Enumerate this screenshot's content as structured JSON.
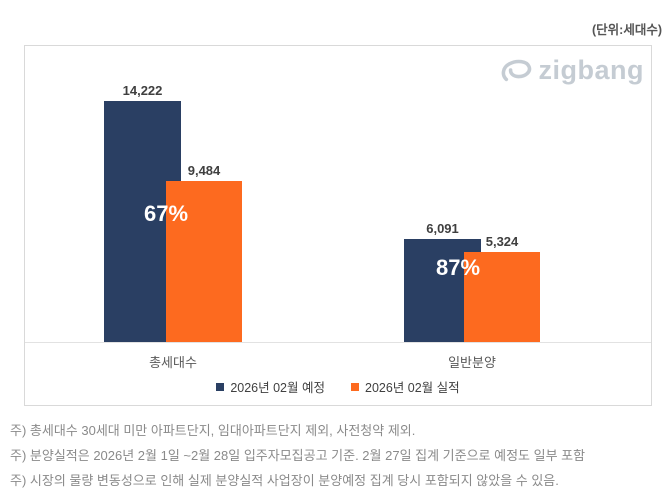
{
  "unit_label": "(단위:세대수)",
  "logo": {
    "text": "zigbang"
  },
  "chart_data": {
    "type": "bar",
    "title": "",
    "xlabel": "",
    "ylabel": "세대수",
    "unit": "세대수",
    "categories": [
      "총세대수",
      "일반분양"
    ],
    "series": [
      {
        "name": "2026년 02월 예정",
        "color": "#2A3F63",
        "values": [
          14222,
          6091
        ],
        "labels": [
          "14,222",
          "6,091"
        ]
      },
      {
        "name": "2026년 02월 실적",
        "color": "#FD6A1F",
        "values": [
          9484,
          5324
        ],
        "labels": [
          "9,484",
          "5,324"
        ]
      }
    ],
    "ratio_labels": [
      "67%",
      "87%"
    ],
    "ylim": [
      0,
      14222
    ],
    "grid": false,
    "legend_position": "bottom"
  },
  "notes": [
    "주) 총세대수 30세대 미만 아파트단지, 임대아파트단지 제외, 사전청약 제외.",
    "주) 분양실적은 2026년 2월 1일 ~2월 28일 입주자모집공고 기준. 2월 27일 집계 기준으로 예정도 일부 포함",
    "주) 시장의 물량 변동성으로 인해 실제 분양실적 사업장이 분양예정 집계 당시 포함되지 않았을 수 있음."
  ]
}
